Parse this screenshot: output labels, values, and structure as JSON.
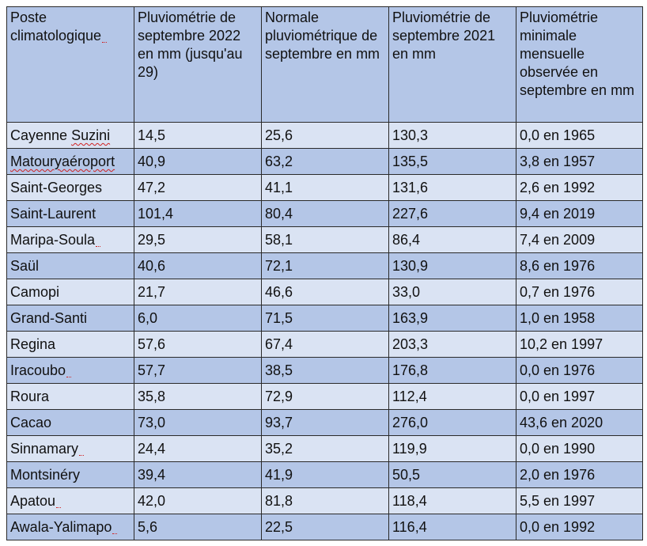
{
  "table": {
    "headers": [
      "Poste climatologique",
      "Pluviométrie de septembre 2022 en mm (jusqu'au 29)",
      "Normale pluviométrique de septembre en mm",
      "Pluviométrie de septembre 2021 en mm",
      "Pluviométrie minimale mensuelle observée en septembre en mm"
    ],
    "rows": [
      [
        "Cayenne Suzini",
        "14,5",
        "25,6",
        "130,3",
        "0,0 en 1965"
      ],
      [
        "Matouryaéroport",
        "40,9",
        "63,2",
        "135,5",
        "3,8 en 1957"
      ],
      [
        "Saint-Georges",
        "47,2",
        "41,1",
        "131,6",
        "2,6 en 1992"
      ],
      [
        "Saint-Laurent",
        "101,4",
        "80,4",
        "227,6",
        "9,4 en 2019"
      ],
      [
        "Maripa-Soula",
        "29,5",
        "58,1",
        "86,4",
        "7,4 en 2009"
      ],
      [
        "Saül",
        "40,6",
        "72,1",
        "130,9",
        "8,6 en 1976"
      ],
      [
        "Camopi",
        "21,7",
        "46,6",
        "33,0",
        "0,7 en 1976"
      ],
      [
        "Grand-Santi",
        "6,0",
        "71,5",
        "163,9",
        "1,0 en 1958"
      ],
      [
        "Regina",
        "57,6",
        "67,4",
        "203,3",
        "10,2 en 1997"
      ],
      [
        "Iracoubo",
        "57,7",
        "38,5",
        "176,8",
        "0,0 en 1976"
      ],
      [
        "Roura",
        "35,8",
        "72,9",
        "112,4",
        "0,0 en 1997"
      ],
      [
        "Cacao",
        "73,0",
        "93,7",
        "276,0",
        "43,6 en 2020"
      ],
      [
        "Sinnamary",
        "24,4",
        "35,2",
        "119,9",
        "0,0 en 1990"
      ],
      [
        "Montsinéry",
        "39,4",
        "41,9",
        "50,5",
        "2,0 en 1976"
      ],
      [
        "Apatou",
        "42,0",
        "81,8",
        "118,4",
        "5,5 en 1997"
      ],
      [
        "Awala-Yalimapo",
        "5,6",
        "22,5",
        "116,4",
        "0,0 en 1992"
      ]
    ]
  },
  "colors": {
    "header_bg": "#b4c6e7",
    "row_light": "#dae3f3",
    "row_dark": "#b4c6e7",
    "border": "#2a2a2a",
    "spellcheck_underline": "#d02020"
  }
}
